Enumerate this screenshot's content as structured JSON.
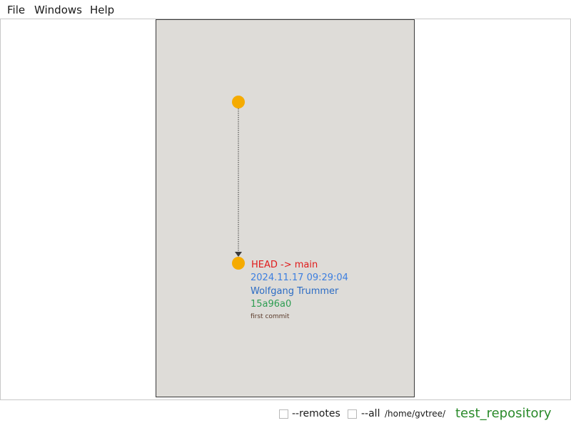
{
  "menu": {
    "file": "File",
    "windows": "Windows",
    "help": "Help"
  },
  "graph": {
    "colors": {
      "node": "#f5ab00",
      "edge": "#3a3a3a",
      "panel_bg": "#dedcd8"
    },
    "commit": {
      "ref": "HEAD -> main",
      "date": "2024.11.17 09:29:04",
      "author": "Wolfgang Trummer",
      "hash": "15a96a0",
      "message": "first commit"
    }
  },
  "status": {
    "remotes_label": "--remotes",
    "remotes_checked": false,
    "all_label": "--all",
    "all_checked": false,
    "path": "/home/gvtree/",
    "repository": "test_repository"
  }
}
